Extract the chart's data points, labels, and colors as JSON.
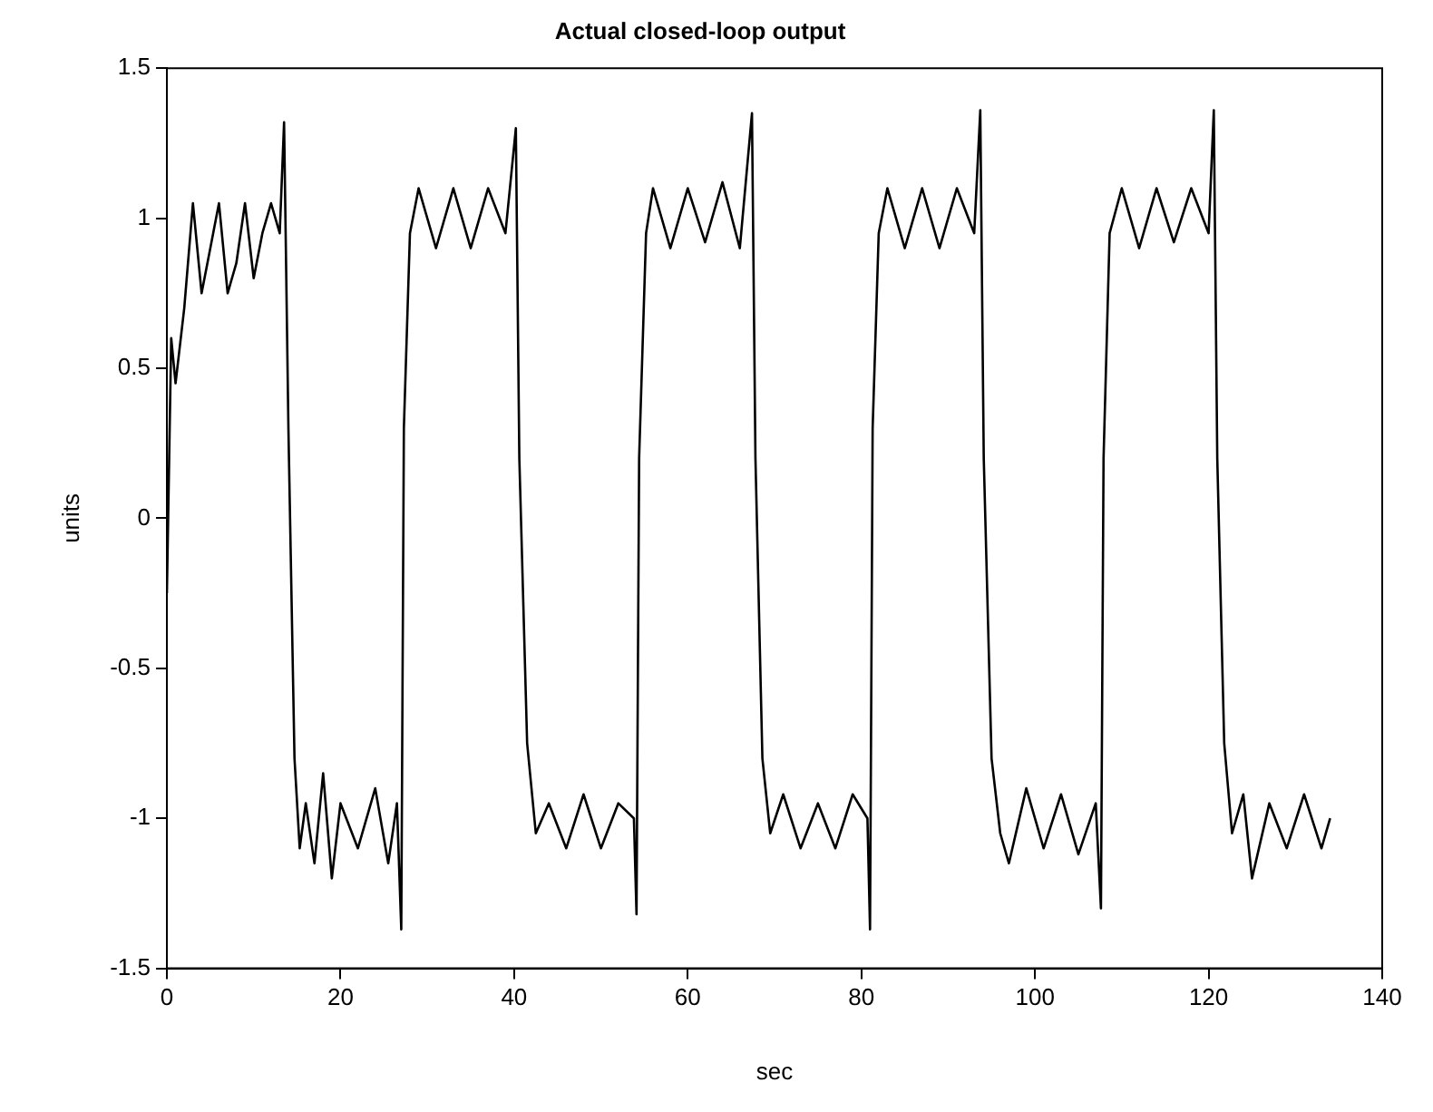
{
  "chart_data": {
    "type": "line",
    "title": "Actual closed-loop output",
    "xlabel": "sec",
    "ylabel": "units",
    "xlim": [
      0,
      140
    ],
    "xticks": [
      0,
      20,
      40,
      60,
      80,
      100,
      120,
      140
    ],
    "ylim": [
      -1.5,
      1.5
    ],
    "yticks": [
      -1.5,
      -1,
      -0.5,
      0,
      0.5,
      1,
      1.5
    ],
    "marker": "none",
    "line_style": "solid",
    "series": [
      {
        "color": "#000000",
        "x": [
          0,
          0.5,
          1,
          2,
          3,
          4,
          5,
          6,
          7,
          8,
          9,
          10,
          11,
          12,
          13,
          13.5,
          14,
          14.7,
          15.3,
          16,
          17,
          18,
          19,
          20,
          22,
          24,
          25.5,
          26.5,
          27,
          27.3,
          28,
          29,
          31,
          33,
          35,
          37,
          39,
          40.2,
          40.6,
          41.5,
          42.5,
          44,
          46,
          48,
          50,
          52,
          53.8,
          54.1,
          54.4,
          55.2,
          56,
          58,
          60,
          62,
          64,
          66,
          67.4,
          67.8,
          68.6,
          69.5,
          71,
          73,
          75,
          77,
          79,
          80.7,
          81,
          81.3,
          82,
          83,
          85,
          87,
          89,
          91,
          93,
          93.7,
          94.1,
          95,
          96,
          97,
          99,
          101,
          103,
          105,
          107,
          107.6,
          107.9,
          108.6,
          110,
          112,
          114,
          116,
          118,
          120,
          120.6,
          121,
          121.8,
          122.7,
          124,
          125,
          127,
          129,
          131,
          133,
          134
        ],
        "values": [
          -0.25,
          0.6,
          0.45,
          0.7,
          1.05,
          0.75,
          0.9,
          1.05,
          0.75,
          0.85,
          1.05,
          0.8,
          0.95,
          1.05,
          0.95,
          1.32,
          0.3,
          -0.8,
          -1.1,
          -0.95,
          -1.15,
          -0.85,
          -1.2,
          -0.95,
          -1.1,
          -0.9,
          -1.15,
          -0.95,
          -1.37,
          0.3,
          0.95,
          1.1,
          0.9,
          1.1,
          0.9,
          1.1,
          0.95,
          1.3,
          0.2,
          -0.75,
          -1.05,
          -0.95,
          -1.1,
          -0.92,
          -1.1,
          -0.95,
          -1,
          -1.32,
          0.2,
          0.95,
          1.1,
          0.9,
          1.1,
          0.92,
          1.12,
          0.9,
          1.35,
          0.2,
          -0.8,
          -1.05,
          -0.92,
          -1.1,
          -0.95,
          -1.1,
          -0.92,
          -1,
          -1.37,
          0.3,
          0.95,
          1.1,
          0.9,
          1.1,
          0.9,
          1.1,
          0.95,
          1.36,
          0.2,
          -0.8,
          -1.05,
          -1.15,
          -0.9,
          -1.1,
          -0.92,
          -1.12,
          -0.95,
          -1.3,
          0.2,
          0.95,
          1.1,
          0.9,
          1.1,
          0.92,
          1.1,
          0.95,
          1.36,
          0.2,
          -0.75,
          -1.05,
          -0.92,
          -1.2,
          -0.95,
          -1.1,
          -0.92,
          -1.1,
          -1
        ]
      }
    ]
  }
}
